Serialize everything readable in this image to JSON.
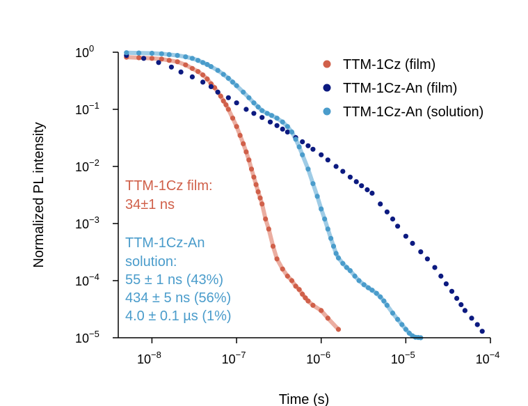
{
  "chart_data": {
    "type": "scatter",
    "title": "",
    "xlabel": "Time (s)",
    "ylabel": "Normalized PL intensity",
    "xscale": "log",
    "yscale": "log",
    "xlim": [
      4e-09,
      0.0001
    ],
    "ylim": [
      1e-05,
      1
    ],
    "x_ticks": [
      {
        "value": 1e-08,
        "base": "10",
        "exp": "−8"
      },
      {
        "value": 1e-07,
        "base": "10",
        "exp": "−7"
      },
      {
        "value": 1e-06,
        "base": "10",
        "exp": "−6"
      },
      {
        "value": 1e-05,
        "base": "10",
        "exp": "−5"
      },
      {
        "value": 0.0001,
        "base": "10",
        "exp": "−4"
      }
    ],
    "y_ticks": [
      {
        "value": 1,
        "base": "10",
        "exp": "0"
      },
      {
        "value": 0.1,
        "base": "10",
        "exp": "−1"
      },
      {
        "value": 0.01,
        "base": "10",
        "exp": "−2"
      },
      {
        "value": 0.001,
        "base": "10",
        "exp": "−3"
      },
      {
        "value": 0.0001,
        "base": "10",
        "exp": "−4"
      },
      {
        "value": 1e-05,
        "base": "10",
        "exp": "−5"
      }
    ],
    "legend_position": "top-right",
    "series": [
      {
        "name": "TTM-1Cz (film)",
        "color": "#d0604a",
        "fit_color": "#e8a090",
        "x": [
          5e-09,
          7e-09,
          1e-08,
          1.3e-08,
          1.6e-08,
          2e-08,
          2.5e-08,
          3e-08,
          3.5e-08,
          4e-08,
          4.5e-08,
          5e-08,
          5.5e-08,
          6e-08,
          6.5e-08,
          7e-08,
          7.5e-08,
          8e-08,
          9e-08,
          1e-07,
          1.1e-07,
          1.2e-07,
          1.3e-07,
          1.4e-07,
          1.5e-07,
          1.6e-07,
          1.7e-07,
          1.8e-07,
          1.9e-07,
          2e-07,
          2.2e-07,
          2.4e-07,
          2.7e-07,
          3e-07,
          3.5e-07,
          4e-07,
          4.5e-07,
          5e-07,
          5.5e-07,
          6e-07,
          6.5e-07,
          7e-07,
          8e-07,
          1e-06,
          1.2e-06,
          1.6e-06
        ],
        "y": [
          0.82,
          0.8,
          0.78,
          0.76,
          0.72,
          0.68,
          0.6,
          0.52,
          0.46,
          0.4,
          0.34,
          0.28,
          0.24,
          0.2,
          0.17,
          0.14,
          0.12,
          0.1,
          0.07,
          0.05,
          0.035,
          0.025,
          0.018,
          0.013,
          0.009,
          0.0065,
          0.0048,
          0.0036,
          0.0028,
          0.0022,
          0.0012,
          0.0008,
          0.0004,
          0.00024,
          0.00016,
          0.00012,
          0.0001,
          8e-05,
          7e-05,
          5.8e-05,
          5e-05,
          4.4e-05,
          3.7e-05,
          3e-05,
          2.2e-05,
          1.4e-05
        ]
      },
      {
        "name": "TTM-1Cz-An (film)",
        "color": "#0c1a80",
        "fit_color": "#0c1a80",
        "x": [
          5e-09,
          8e-09,
          1.2e-08,
          1.7e-08,
          2.2e-08,
          3e-08,
          4e-08,
          5e-08,
          6e-08,
          8e-08,
          1e-07,
          1.3e-07,
          1.6e-07,
          2e-07,
          2.5e-07,
          3e-07,
          3.5e-07,
          4e-07,
          5e-07,
          6e-07,
          7e-07,
          8e-07,
          1e-06,
          1.2e-06,
          1.5e-06,
          1.8e-06,
          2.2e-06,
          2.6e-06,
          3e-06,
          3.5e-06,
          4e-06,
          5e-06,
          6e-06,
          7e-06,
          8e-06,
          1e-05,
          1.2e-05,
          1.5e-05,
          1.8e-05,
          2.2e-05,
          2.6e-05,
          3e-05,
          3.5e-05,
          4e-05,
          4.5e-05,
          5e-05,
          6e-05,
          7e-05,
          8e-05
        ],
        "y": [
          0.88,
          0.78,
          0.66,
          0.55,
          0.45,
          0.37,
          0.3,
          0.25,
          0.2,
          0.16,
          0.13,
          0.1,
          0.085,
          0.072,
          0.06,
          0.052,
          0.045,
          0.04,
          0.032,
          0.027,
          0.023,
          0.02,
          0.016,
          0.013,
          0.01,
          0.0082,
          0.0065,
          0.0054,
          0.0046,
          0.0039,
          0.0034,
          0.0022,
          0.0016,
          0.0012,
          0.0009,
          0.0006,
          0.00045,
          0.00032,
          0.00024,
          0.00017,
          0.00012,
          8.8e-05,
          6.5e-05,
          4.9e-05,
          3.8e-05,
          3e-05,
          2.2e-05,
          1.7e-05,
          1.3e-05
        ]
      },
      {
        "name": "TTM-1Cz-An (solution)",
        "color": "#4a9ccb",
        "fit_color": "#8ec3e2",
        "x": [
          5e-09,
          7e-09,
          1e-08,
          1.3e-08,
          1.6e-08,
          2e-08,
          2.5e-08,
          3e-08,
          3.5e-08,
          4e-08,
          4.5e-08,
          5e-08,
          6e-08,
          7e-08,
          8e-08,
          9e-08,
          1e-07,
          1.2e-07,
          1.4e-07,
          1.6e-07,
          1.8e-07,
          2e-07,
          2.3e-07,
          2.6e-07,
          3e-07,
          3.5e-07,
          4e-07,
          4.5e-07,
          5e-07,
          5.5e-07,
          6e-07,
          7e-07,
          8e-07,
          9e-07,
          1e-06,
          1.1e-06,
          1.2e-06,
          1.3e-06,
          1.4e-06,
          1.5e-06,
          1.6e-06,
          1.8e-06,
          2e-06,
          2.2e-06,
          2.5e-06,
          2.8e-06,
          3.2e-06,
          3.6e-06,
          4e-06,
          4.5e-06,
          5e-06,
          5.5e-06,
          6e-06,
          7e-06,
          8e-06,
          9e-06,
          1e-05,
          1.1e-05,
          1.2e-05,
          1.3e-05,
          1.4e-05,
          1.5e-05
        ],
        "y": [
          0.98,
          0.97,
          0.96,
          0.94,
          0.91,
          0.88,
          0.83,
          0.78,
          0.72,
          0.66,
          0.61,
          0.56,
          0.48,
          0.41,
          0.35,
          0.3,
          0.26,
          0.2,
          0.16,
          0.13,
          0.11,
          0.095,
          0.085,
          0.078,
          0.07,
          0.06,
          0.05,
          0.04,
          0.03,
          0.022,
          0.016,
          0.009,
          0.005,
          0.003,
          0.0018,
          0.0012,
          0.0008,
          0.00055,
          0.0004,
          0.0003,
          0.00025,
          0.0002,
          0.00017,
          0.00015,
          0.00012,
          0.0001,
          8.5e-05,
          7.5e-05,
          6.8e-05,
          6e-05,
          5.2e-05,
          4.4e-05,
          3.7e-05,
          2.7e-05,
          2.1e-05,
          1.7e-05,
          1.4e-05,
          1.2e-05,
          1.08e-05,
          1.02e-05,
          1.01e-05,
          1e-05
        ]
      }
    ],
    "annotations": {
      "film_title": "TTM-1Cz film:",
      "film_value": "34±1 ns",
      "sol_title_1": "TTM-1Cz-An",
      "sol_title_2": "solution:",
      "sol_line_1": "55 ± 1 ns (43%)",
      "sol_line_2": "434 ± 5 ns (56%)",
      "sol_line_3": "4.0 ± 0.1 µs (1%)",
      "film_color": "#d0604a",
      "sol_color": "#4a9ccb"
    }
  }
}
